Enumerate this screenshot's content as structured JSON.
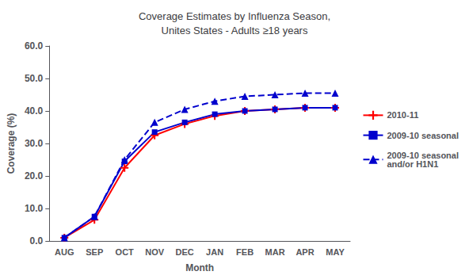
{
  "chart_data": {
    "type": "line",
    "title": "Coverage Estimates by Influenza Season,\nUnites States - Adults ≥18 years",
    "xlabel": "Month",
    "ylabel": "Coverage (%)",
    "categories": [
      "AUG",
      "SEP",
      "OCT",
      "NOV",
      "DEC",
      "JAN",
      "FEB",
      "MAR",
      "APR",
      "MAY"
    ],
    "series": [
      {
        "name": "2010-11",
        "color": "#FF0000",
        "marker": "plus",
        "line_style": "solid",
        "values": [
          1.0,
          6.5,
          22.5,
          32.5,
          36.0,
          38.5,
          40.0,
          40.5,
          41.0,
          41.0
        ]
      },
      {
        "name": "2009-10 seasonal",
        "color": "#0000CD",
        "marker": "square",
        "line_style": "solid",
        "values": [
          1.0,
          7.5,
          24.5,
          33.5,
          36.5,
          39.0,
          40.0,
          40.5,
          41.0,
          41.0
        ]
      },
      {
        "name": "2009-10 seasonal\nand/or H1N1",
        "color": "#0000CD",
        "marker": "triangle",
        "line_style": "dashed",
        "values": [
          1.0,
          7.5,
          25.0,
          36.5,
          40.5,
          43.0,
          44.5,
          45.0,
          45.5,
          45.5
        ]
      }
    ],
    "ylim": [
      0.0,
      60.0
    ],
    "yticks": [
      {
        "value": 0,
        "label": "0.0"
      },
      {
        "value": 10,
        "label": "10.0"
      },
      {
        "value": 20,
        "label": "20.0"
      },
      {
        "value": 30,
        "label": "30.0"
      },
      {
        "value": 40,
        "label": "40.0"
      },
      {
        "value": 50,
        "label": "50.0"
      },
      {
        "value": 60,
        "label": "60.0"
      }
    ],
    "grid": false,
    "legend": "right"
  }
}
